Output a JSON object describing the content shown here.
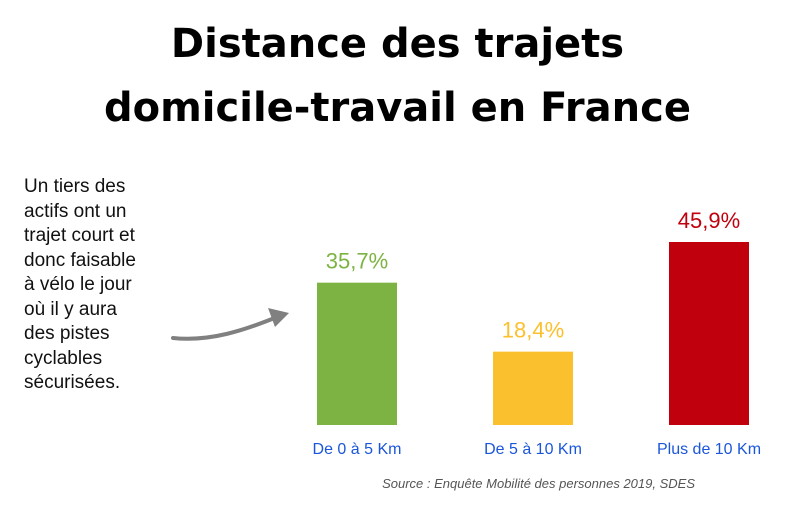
{
  "title": {
    "line1": "Distance des trajets",
    "line2": "domicile-travail en France"
  },
  "note": {
    "lines": [
      "Un tiers des",
      "actifs ont un",
      "trajet court et",
      "donc faisable",
      "à vélo le jour",
      "où il y aura",
      "des pistes",
      "cyclables",
      "sécurisées."
    ]
  },
  "arrow_icon": "curved-arrow-right",
  "source": "Source : Enquête Mobilité des personnes 2019, SDES",
  "colors": {
    "green": "#7cb342",
    "yellow": "#fbc02d",
    "red": "#c0000c",
    "category_label": "#1a56db",
    "arrow": "#808080"
  },
  "chart_data": {
    "type": "bar",
    "categories": [
      "De 0 à 5 Km",
      "De 5 à 10 Km",
      "Plus de 10 Km"
    ],
    "values": [
      35.7,
      18.4,
      45.9
    ],
    "value_labels": [
      "35,7%",
      "18,4%",
      "45,9%"
    ],
    "bar_colors": [
      "#7cb342",
      "#fbc02d",
      "#c0000c"
    ],
    "title": "",
    "xlabel": "",
    "ylabel": "",
    "ylim": [
      0,
      50
    ],
    "grid": false
  }
}
